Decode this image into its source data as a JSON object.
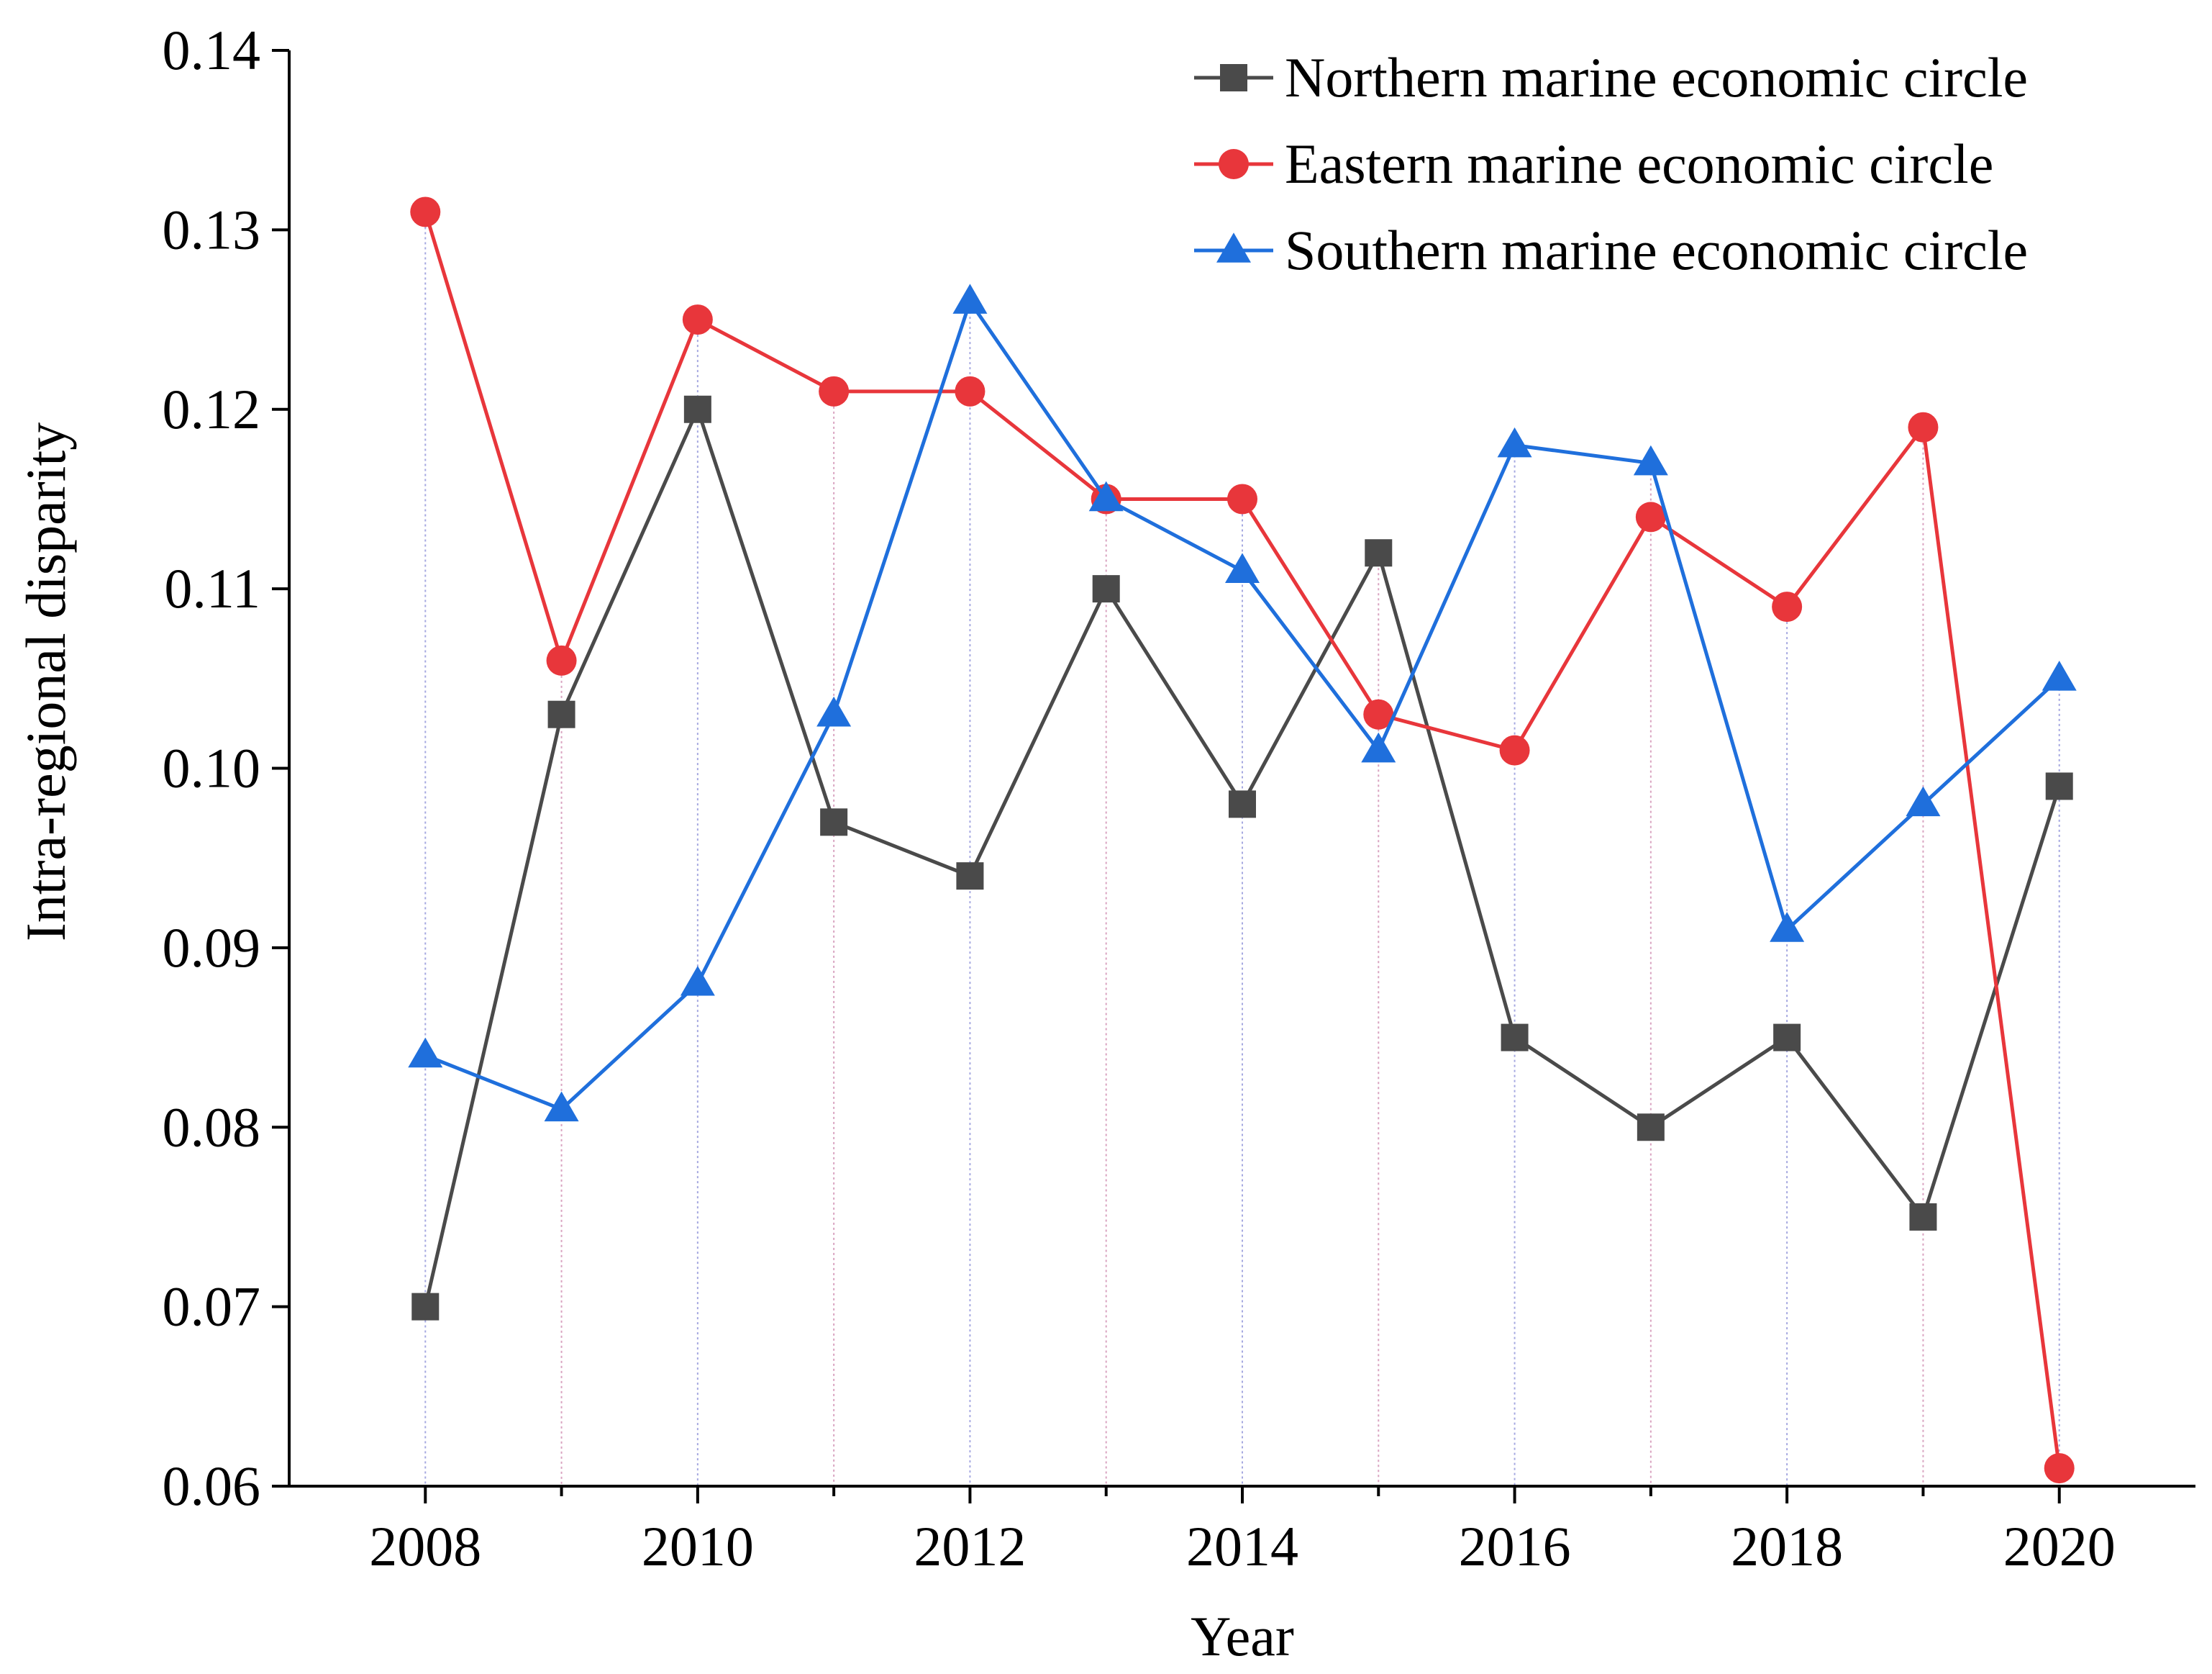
{
  "chart_data": {
    "type": "line",
    "title": "",
    "xlabel": "Year",
    "ylabel": "Intra-regional disparity",
    "x": [
      2008,
      2009,
      2010,
      2011,
      2012,
      2013,
      2014,
      2015,
      2016,
      2017,
      2018,
      2019,
      2020
    ],
    "x_ticks": [
      "2008",
      "2010",
      "2012",
      "2014",
      "2016",
      "2018",
      "2020"
    ],
    "y_ticks": [
      "0.06",
      "0.07",
      "0.08",
      "0.09",
      "0.10",
      "0.11",
      "0.12",
      "0.13",
      "0.14"
    ],
    "xlim": [
      2007,
      2021
    ],
    "ylim": [
      0.06,
      0.14
    ],
    "grid": false,
    "legend_position": "top-right",
    "series": [
      {
        "name": "Northern marine economic circle",
        "color": "#4a4a4a",
        "marker": "square",
        "values": [
          0.07,
          0.103,
          0.12,
          0.097,
          0.094,
          0.11,
          0.098,
          0.112,
          0.085,
          0.08,
          0.085,
          0.075,
          0.099
        ]
      },
      {
        "name": "Eastern marine economic circle",
        "color": "#e8363b",
        "marker": "circle",
        "values": [
          0.131,
          0.106,
          0.125,
          0.121,
          0.121,
          0.115,
          0.115,
          0.103,
          0.101,
          0.114,
          0.109,
          0.119,
          0.061
        ]
      },
      {
        "name": "Southern marine economic circle",
        "color": "#1f6fdc",
        "marker": "triangle",
        "values": [
          0.084,
          0.081,
          0.088,
          0.103,
          0.126,
          0.115,
          0.111,
          0.101,
          0.118,
          0.117,
          0.091,
          0.098,
          0.105
        ]
      }
    ]
  }
}
